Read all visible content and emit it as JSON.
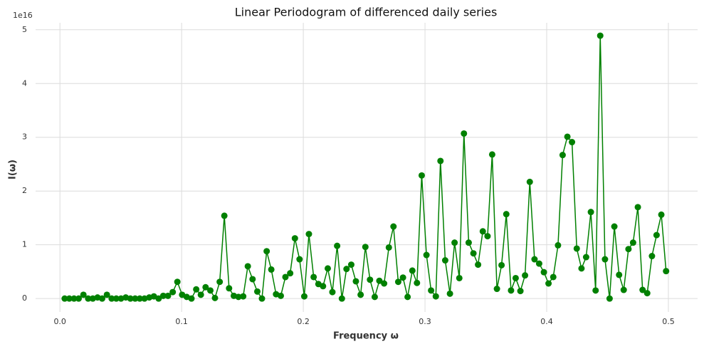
{
  "chart_data": {
    "type": "line",
    "title": "Linear Periodogram of differenced daily series",
    "xlabel": "Frequency ω",
    "ylabel": "I(ω)",
    "y_offset_label": "1e16",
    "x": [
      0.0039,
      0.0077,
      0.0116,
      0.0154,
      0.0193,
      0.0232,
      0.027,
      0.0309,
      0.0347,
      0.0386,
      0.0425,
      0.0463,
      0.0502,
      0.0541,
      0.0579,
      0.0618,
      0.0656,
      0.0695,
      0.0734,
      0.0772,
      0.0811,
      0.0849,
      0.0888,
      0.0927,
      0.0965,
      0.1004,
      0.1042,
      0.1081,
      0.112,
      0.1158,
      0.1197,
      0.1236,
      0.1274,
      0.1313,
      0.1351,
      0.139,
      0.1429,
      0.1467,
      0.1506,
      0.1544,
      0.1583,
      0.1622,
      0.166,
      0.1699,
      0.1737,
      0.1776,
      0.1815,
      0.1853,
      0.1892,
      0.1931,
      0.1969,
      0.2008,
      0.2046,
      0.2085,
      0.2124,
      0.2162,
      0.2201,
      0.2239,
      0.2278,
      0.2317,
      0.2355,
      0.2394,
      0.2432,
      0.2471,
      0.251,
      0.2548,
      0.2587,
      0.2625,
      0.2664,
      0.2703,
      0.2741,
      0.278,
      0.2819,
      0.2857,
      0.2896,
      0.2934,
      0.2973,
      0.3012,
      0.305,
      0.3089,
      0.3127,
      0.3166,
      0.3205,
      0.3243,
      0.3282,
      0.332,
      0.3359,
      0.3398,
      0.3436,
      0.3475,
      0.3514,
      0.3552,
      0.3591,
      0.3629,
      0.3668,
      0.3707,
      0.3745,
      0.3784,
      0.3822,
      0.3861,
      0.39,
      0.3938,
      0.3977,
      0.4015,
      0.4054,
      0.4093,
      0.4131,
      0.417,
      0.4208,
      0.4247,
      0.4286,
      0.4324,
      0.4363,
      0.4402,
      0.444,
      0.4479,
      0.4517,
      0.4556,
      0.4595,
      0.4633,
      0.4672,
      0.471,
      0.4749,
      0.4788,
      0.4826,
      0.4865,
      0.4903,
      0.4942,
      0.4981
    ],
    "series": [
      {
        "color": "#008000",
        "values": [
          0,
          0,
          0,
          0,
          0.07,
          0,
          0,
          0.02,
          0,
          0.07,
          0,
          0,
          0,
          0.02,
          0,
          0,
          0,
          0,
          0.02,
          0.04,
          0,
          0.05,
          0.05,
          0.12,
          0.31,
          0.07,
          0.03,
          0,
          0.17,
          0.07,
          0.21,
          0.15,
          0.01,
          0.31,
          1.54,
          0.19,
          0.05,
          0.03,
          0.04,
          0.6,
          0.36,
          0.13,
          0,
          0.88,
          0.54,
          0.08,
          0.05,
          0.4,
          0.47,
          1.12,
          0.73,
          0.04,
          1.2,
          0.4,
          0.27,
          0.23,
          0.56,
          0.12,
          0.98,
          0,
          0.55,
          0.63,
          0.32,
          0.07,
          0.96,
          0.35,
          0.03,
          0.33,
          0.28,
          0.95,
          1.34,
          0.31,
          0.39,
          0.03,
          0.52,
          0.29,
          2.29,
          0.81,
          0.15,
          0.04,
          2.56,
          0.71,
          0.09,
          1.04,
          0.38,
          3.07,
          1.04,
          0.84,
          0.63,
          1.25,
          1.16,
          2.68,
          0.18,
          0.62,
          1.57,
          0.15,
          0.38,
          0.14,
          0.43,
          2.17,
          0.73,
          0.65,
          0.49,
          0.28,
          0.4,
          0.99,
          2.67,
          3.01,
          2.91,
          0.93,
          0.56,
          0.77,
          1.61,
          0.15,
          4.89,
          0.73,
          0,
          1.34,
          0.44,
          0.16,
          0.92,
          1.04,
          1.7,
          0.16,
          0.1,
          0.79,
          1.18,
          1.56,
          0.51
        ]
      }
    ],
    "xlim": [
      -0.02,
      0.524
    ],
    "ylim": [
      -0.25,
      5.13
    ],
    "xticks": [
      {
        "value": 0,
        "label": "0.0"
      },
      0.1,
      0.2,
      0.3,
      0.4,
      0.5
    ],
    "yticks": [
      0,
      1,
      2,
      3,
      4,
      5
    ],
    "grid": true
  }
}
